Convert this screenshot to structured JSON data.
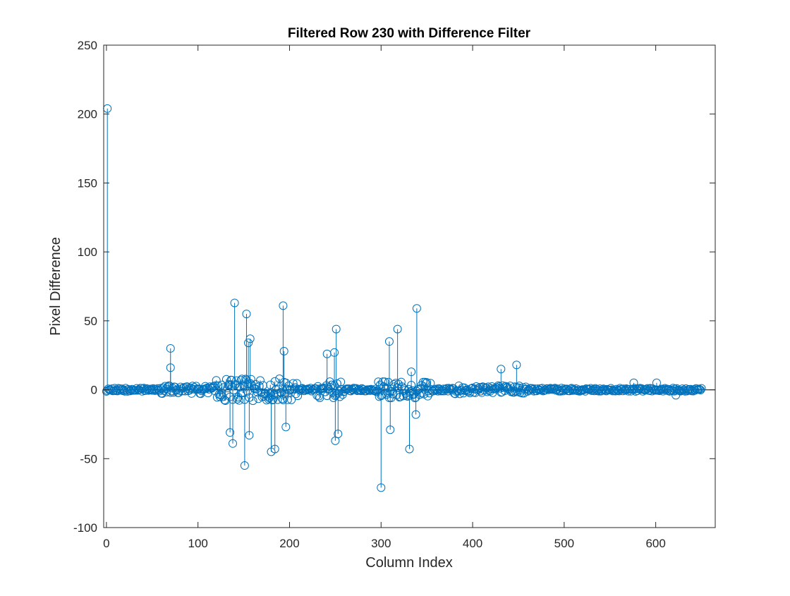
{
  "chart_data": {
    "type": "scatter",
    "style": "stem",
    "title": "Filtered Row 230 with Difference Filter",
    "xlabel": "Column Index",
    "ylabel": "Pixel Difference",
    "xlim": [
      -3,
      665
    ],
    "ylim": [
      -100,
      250
    ],
    "xticks": [
      0,
      100,
      200,
      300,
      400,
      500,
      600
    ],
    "yticks": [
      -100,
      -50,
      0,
      50,
      100,
      150,
      200,
      250
    ],
    "xtick_labels": [
      "0",
      "100",
      "200",
      "300",
      "400",
      "500",
      "600"
    ],
    "ytick_labels": [
      "-100",
      "-50",
      "0",
      "50",
      "100",
      "150",
      "200",
      "250"
    ],
    "grid": false,
    "marker": "open-circle",
    "color": "#0072BD",
    "notable_points": [
      {
        "x": 1,
        "y": 204
      },
      {
        "x": 70,
        "y": 30
      },
      {
        "x": 70,
        "y": 16
      },
      {
        "x": 140,
        "y": 63
      },
      {
        "x": 135,
        "y": -31
      },
      {
        "x": 138,
        "y": -39
      },
      {
        "x": 151,
        "y": -55
      },
      {
        "x": 153,
        "y": 55
      },
      {
        "x": 155,
        "y": 34
      },
      {
        "x": 157,
        "y": 37
      },
      {
        "x": 156,
        "y": -33
      },
      {
        "x": 180,
        "y": -45
      },
      {
        "x": 184,
        "y": -43
      },
      {
        "x": 193,
        "y": 61
      },
      {
        "x": 194,
        "y": 28
      },
      {
        "x": 196,
        "y": -27
      },
      {
        "x": 241,
        "y": 26
      },
      {
        "x": 249,
        "y": 27
      },
      {
        "x": 251,
        "y": 44
      },
      {
        "x": 250,
        "y": -37
      },
      {
        "x": 253,
        "y": -32
      },
      {
        "x": 300,
        "y": -71
      },
      {
        "x": 309,
        "y": 35
      },
      {
        "x": 310,
        "y": -29
      },
      {
        "x": 318,
        "y": 44
      },
      {
        "x": 331,
        "y": -43
      },
      {
        "x": 333,
        "y": 13
      },
      {
        "x": 339,
        "y": 59
      },
      {
        "x": 338,
        "y": -18
      },
      {
        "x": 431,
        "y": 15
      },
      {
        "x": 448,
        "y": 18
      },
      {
        "x": 576,
        "y": 5
      },
      {
        "x": 601,
        "y": 5
      },
      {
        "x": 622,
        "y": -4
      }
    ]
  }
}
